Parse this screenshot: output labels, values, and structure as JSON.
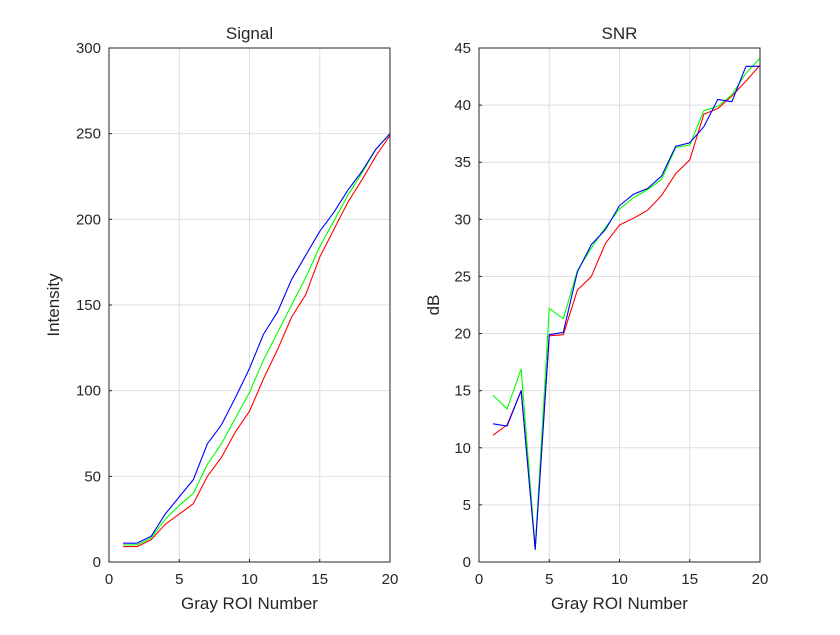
{
  "chart_data": [
    {
      "type": "line",
      "title": "Signal",
      "xlabel": "Gray ROI Number",
      "ylabel": "Intensity",
      "xlim": [
        0,
        20
      ],
      "ylim": [
        0,
        300
      ],
      "xticks": [
        0,
        5,
        10,
        15,
        20
      ],
      "yticks": [
        0,
        50,
        100,
        150,
        200,
        250,
        300
      ],
      "grid": true,
      "x": [
        1,
        2,
        3,
        4,
        5,
        6,
        7,
        8,
        9,
        10,
        11,
        12,
        13,
        14,
        15,
        16,
        17,
        18,
        19,
        20
      ],
      "series": [
        {
          "color": "#ff0000",
          "values": [
            9,
            9,
            13,
            22,
            28,
            34,
            50,
            61,
            76,
            88,
            107,
            124,
            143,
            156,
            178,
            194,
            210,
            223,
            237,
            249
          ]
        },
        {
          "color": "#00ff00",
          "values": [
            10,
            10,
            14,
            25,
            33,
            40,
            57,
            69,
            84,
            99,
            118,
            134,
            150,
            166,
            184,
            199,
            214,
            227,
            241,
            250
          ]
        },
        {
          "color": "#0000ff",
          "values": [
            11,
            11,
            15,
            28,
            38,
            48,
            69,
            80,
            96,
            113,
            133,
            146,
            165,
            179,
            193,
            204,
            217,
            228,
            241,
            250
          ]
        }
      ]
    },
    {
      "type": "line",
      "title": "SNR",
      "xlabel": "Gray ROI Number",
      "ylabel": "dB",
      "xlim": [
        0,
        20
      ],
      "ylim": [
        0,
        45
      ],
      "xticks": [
        0,
        5,
        10,
        15,
        20
      ],
      "yticks": [
        0,
        5,
        10,
        15,
        20,
        25,
        30,
        35,
        40,
        45
      ],
      "grid": true,
      "x": [
        1,
        2,
        3,
        4,
        5,
        6,
        7,
        8,
        9,
        10,
        11,
        12,
        13,
        14,
        15,
        16,
        17,
        18,
        19,
        20
      ],
      "series": [
        {
          "color": "#ff0000",
          "values": [
            11.1,
            12,
            15,
            1.2,
            19.8,
            19.9,
            23.8,
            25,
            27.9,
            29.5,
            30.1,
            30.8,
            32.1,
            34,
            35.2,
            39.2,
            39.7,
            40.8,
            42.1,
            43.5
          ]
        },
        {
          "color": "#00ff00",
          "values": [
            14.6,
            13.4,
            16.9,
            1.2,
            22.2,
            21.3,
            25.5,
            27.5,
            29.3,
            30.9,
            31.9,
            32.6,
            33.5,
            36.3,
            36.5,
            39.5,
            39.9,
            40.9,
            42.8,
            44.1
          ]
        },
        {
          "color": "#0000ff",
          "values": [
            12.1,
            11.9,
            15.0,
            1.1,
            19.9,
            20.1,
            25.4,
            27.8,
            29.1,
            31.2,
            32.2,
            32.7,
            33.8,
            36.4,
            36.7,
            38.1,
            40.5,
            40.3,
            43.4,
            43.4
          ]
        }
      ]
    }
  ]
}
